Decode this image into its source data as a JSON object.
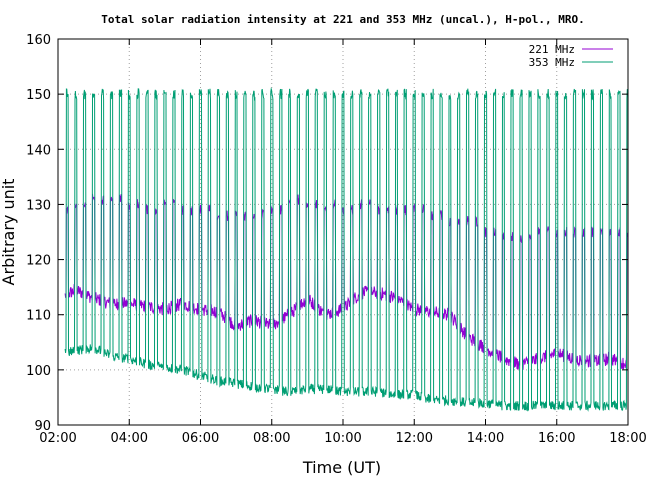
{
  "chart_data": {
    "type": "line",
    "title": "Total solar radiation intensity at 221 and 353 MHz (uncal.), H-pol., MRO.",
    "xlabel": "Time (UT)",
    "ylabel": "Arbitrary unit",
    "xlim": [
      2,
      18
    ],
    "ylim": [
      90,
      160
    ],
    "x_ticks": [
      2,
      4,
      6,
      8,
      10,
      12,
      14,
      16,
      18
    ],
    "x_tick_labels": [
      "02:00",
      "04:00",
      "06:00",
      "08:00",
      "10:00",
      "12:00",
      "14:00",
      "16:00",
      "18:00"
    ],
    "y_ticks": [
      90,
      100,
      110,
      120,
      130,
      140,
      150,
      160
    ],
    "y_tick_labels": [
      "90",
      "100",
      "110",
      "120",
      "130",
      "140",
      "150",
      "160"
    ],
    "grid": true,
    "legend_position": "top-right",
    "series": [
      {
        "name": "221 MHz",
        "color": "#9400d3",
        "baseline_x": [
          2.2,
          2.5,
          3.0,
          3.5,
          4.0,
          4.5,
          5.0,
          5.5,
          6.0,
          6.5,
          7.0,
          7.5,
          8.0,
          8.5,
          9.0,
          9.5,
          10.0,
          10.5,
          11.0,
          11.5,
          12.0,
          12.5,
          13.0,
          13.5,
          14.0,
          14.5,
          15.0,
          15.5,
          16.0,
          16.5,
          17.0,
          17.5,
          18.0
        ],
        "baseline_y": [
          113.5,
          114.5,
          113,
          112,
          112,
          111.5,
          111,
          112,
          111,
          110.5,
          108,
          109,
          108,
          110,
          113,
          110,
          111,
          114,
          114,
          113,
          111,
          110.5,
          110,
          106,
          104,
          102,
          101,
          102,
          103,
          102,
          101.5,
          102,
          101
        ],
        "spike_peak_y": [
          129,
          130,
          131,
          131,
          130,
          129,
          130,
          129,
          129,
          128,
          128,
          128,
          129,
          131,
          130,
          130,
          129,
          130,
          129,
          129,
          129,
          128,
          127,
          127,
          125,
          124,
          124,
          125,
          125,
          125,
          125,
          125,
          124
        ]
      },
      {
        "name": "353 MHz",
        "color": "#009e73",
        "baseline_x": [
          2.2,
          2.5,
          3.0,
          3.5,
          4.0,
          4.5,
          5.0,
          5.5,
          6.0,
          6.5,
          7.0,
          7.5,
          8.0,
          8.5,
          9.0,
          9.5,
          10.0,
          10.5,
          11.0,
          11.5,
          12.0,
          12.5,
          13.0,
          13.5,
          14.0,
          14.5,
          15.0,
          15.5,
          16.0,
          16.5,
          17.0,
          17.5,
          18.0
        ],
        "baseline_y": [
          103,
          103.5,
          104,
          102.5,
          102,
          101,
          100.5,
          100,
          99,
          98,
          97.5,
          97,
          96.5,
          96,
          96.5,
          96.5,
          96,
          96,
          96,
          95.5,
          95.5,
          94.5,
          94.5,
          94,
          94,
          93.5,
          93.5,
          93.5,
          93.5,
          93.5,
          93.5,
          93.5,
          93.5
        ],
        "spike_peak_y": 150
      }
    ],
    "spike_interval_hours": 0.25,
    "spike_start": 2.25
  }
}
